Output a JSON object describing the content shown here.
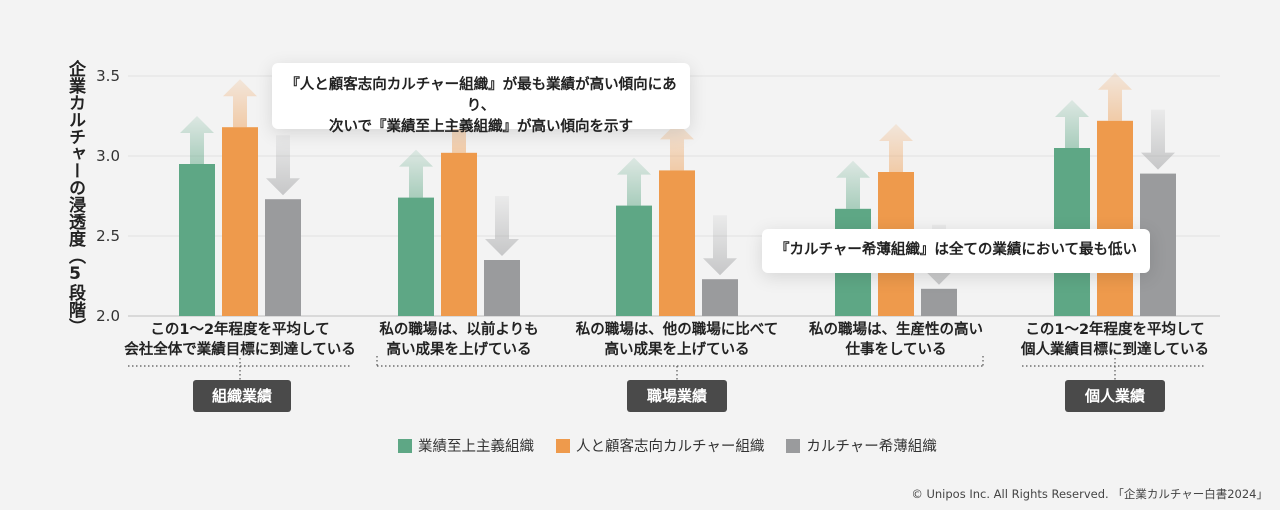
{
  "chart_data": {
    "type": "bar",
    "ylabel": "企業カルチャーの浸透度（5段階）",
    "ylim": [
      2.0,
      3.5
    ],
    "yticks": [
      "2.0",
      "2.5",
      "3.0",
      "3.5"
    ],
    "grid": true,
    "categories": [
      [
        "この1～2年程度を平均して",
        "会社全体で業績目標に到達している"
      ],
      [
        "私の職場は、以前よりも",
        "高い成果を上げている"
      ],
      [
        "私の職場は、他の職場に比べて",
        "高い成果を上げている"
      ],
      [
        "私の職場は、生産性の高い",
        "仕事をしている"
      ],
      [
        "この1～2年程度を平均して",
        "個人業績目標に到達している"
      ]
    ],
    "series": [
      {
        "name": "業績至上主義組織",
        "color": "#5ea785",
        "values": [
          2.95,
          2.74,
          2.69,
          2.67,
          3.05
        ],
        "arrows": [
          "up",
          "up",
          "up",
          "up",
          "up"
        ]
      },
      {
        "name": "人と顧客志向カルチャー組織",
        "color": "#ee9a4c",
        "values": [
          3.18,
          3.02,
          2.91,
          2.9,
          3.22
        ],
        "arrows": [
          "up",
          "up",
          "up",
          "up",
          "up"
        ]
      },
      {
        "name": "カルチャー希薄組織",
        "color": "#9a9b9d",
        "values": [
          2.73,
          2.35,
          2.23,
          2.17,
          2.89
        ],
        "arrows": [
          "down",
          "down",
          "down",
          "down",
          "down"
        ]
      }
    ],
    "groups": [
      {
        "label": "組織業績",
        "categories": [
          0
        ]
      },
      {
        "label": "職場業績",
        "categories": [
          1,
          2,
          3
        ]
      },
      {
        "label": "個人業績",
        "categories": [
          4
        ]
      }
    ],
    "annotations": [
      [
        "『人と顧客志向カルチャー組織』が最も業績が高い傾向にあり、",
        "次いで『業績至上主義組織』が高い傾向を示す"
      ],
      [
        "『カルチャー希薄組織』は全ての業績において最も低い"
      ]
    ],
    "legend_position": "bottom"
  },
  "copyright": "© Unipos Inc. All Rights Reserved. 「企業カルチャー白書2024」"
}
